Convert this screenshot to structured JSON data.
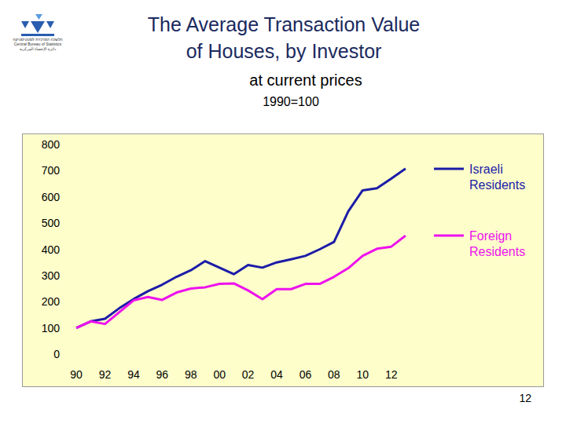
{
  "chart_data": {
    "type": "line",
    "title": [
      "The Average Transaction Value",
      "of Houses, by Investor"
    ],
    "subtitle": "at current prices",
    "annotations": [
      "1990=100"
    ],
    "categories": [
      "90",
      null,
      "92",
      null,
      "94",
      null,
      "96",
      null,
      "98",
      null,
      "00",
      null,
      "02",
      null,
      "04",
      null,
      "06",
      null,
      "08",
      null,
      "10",
      null,
      "12",
      null
    ],
    "series": [
      {
        "name": "Israeli Residents",
        "color": "#1c1ca8",
        "values": [
          100,
          125,
          135,
          175,
          210,
          240,
          265,
          295,
          320,
          355,
          330,
          305,
          340,
          330,
          350,
          362,
          375,
          400,
          428,
          545,
          625,
          633,
          670,
          708
        ]
      },
      {
        "name": "Foreign Residents",
        "color": "#ee11ee",
        "values": [
          100,
          125,
          115,
          160,
          205,
          218,
          207,
          235,
          250,
          255,
          268,
          270,
          243,
          210,
          248,
          248,
          268,
          268,
          295,
          328,
          375,
          402,
          410,
          452
        ]
      }
    ],
    "ylim": [
      0,
      800
    ],
    "yticks": [
      0,
      100,
      200,
      300,
      400,
      500,
      600,
      700,
      800
    ],
    "grid": false,
    "legend": "right"
  },
  "page": {
    "number": 12,
    "logo": [
      "הלשכה המרכזית לסטטיסטיקה",
      "Central Bureau of Statistics",
      "دائرة الإحصاء المركزية"
    ]
  }
}
